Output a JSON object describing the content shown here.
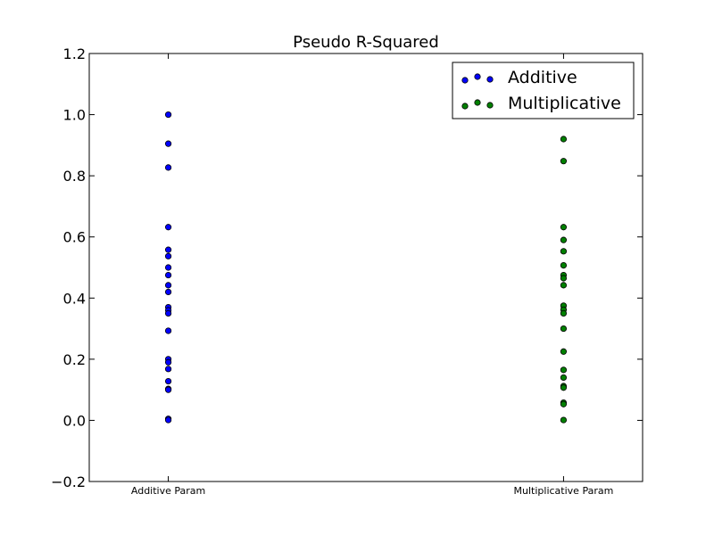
{
  "chart_data": {
    "type": "scatter",
    "title": "Pseudo R-Squared",
    "xlabel": "",
    "ylabel": "",
    "categories": [
      "Additive Param",
      "Multiplicative Param"
    ],
    "xlim": [
      0,
      1.4
    ],
    "ylim": [
      -0.2,
      1.2
    ],
    "yticks": [
      -0.2,
      0.0,
      0.2,
      0.4,
      0.6,
      0.8,
      1.0,
      1.2
    ],
    "ytick_labels": [
      "−0.2",
      "0.0",
      "0.2",
      "0.4",
      "0.6",
      "0.8",
      "1.0",
      "1.2"
    ],
    "legend_position": "upper right",
    "grid": false,
    "series": [
      {
        "name": "Additive",
        "color": "#0000ff",
        "x": 0.2,
        "values": [
          1.0,
          0.905,
          0.827,
          0.632,
          0.558,
          0.537,
          0.5,
          0.475,
          0.442,
          0.42,
          0.37,
          0.36,
          0.35,
          0.293,
          0.2,
          0.19,
          0.168,
          0.128,
          0.103,
          0.1,
          0.005,
          0.001
        ]
      },
      {
        "name": "Multiplicative",
        "color": "#008000",
        "x": 1.2,
        "values": [
          0.92,
          0.848,
          0.632,
          0.59,
          0.553,
          0.507,
          0.475,
          0.465,
          0.442,
          0.375,
          0.362,
          0.35,
          0.3,
          0.225,
          0.165,
          0.14,
          0.112,
          0.107,
          0.058,
          0.053,
          0.001
        ]
      }
    ]
  }
}
